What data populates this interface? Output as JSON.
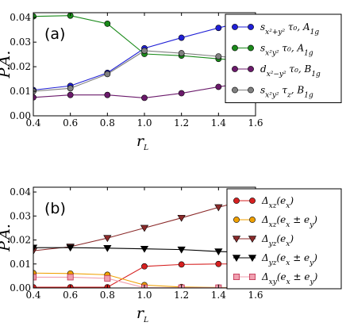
{
  "chart_data": [
    {
      "type": "line",
      "panel_label": "(a)",
      "xlabel": "r_L",
      "ylabel": "P.A.",
      "xlim": [
        0.4,
        1.6
      ],
      "ylim": [
        0.0,
        0.042
      ],
      "xticks": [
        "0.4",
        "0.6",
        "0.8",
        "1.0",
        "1.2",
        "1.4",
        "1.6"
      ],
      "yticks": [
        "0.00",
        "0.01",
        "0.02",
        "0.03",
        "0.04"
      ],
      "legend_position": "top-right",
      "x": [
        0.4,
        0.6,
        0.8,
        1.0,
        1.2,
        1.4,
        1.6
      ],
      "series": [
        {
          "name": "s_{x²+y²} τ₀, A_{1g}",
          "color": "#1f1fd6",
          "marker": "circle",
          "values": [
            0.0105,
            0.0122,
            0.0175,
            0.0275,
            0.0318,
            0.0358,
            0.0395
          ]
        },
        {
          "name": "s_{x²y²} τ₀, A_{1g}",
          "color": "#1a8a1a",
          "marker": "circle",
          "values": [
            0.0405,
            0.0408,
            0.0375,
            0.0252,
            0.0245,
            0.0232,
            0.0222
          ]
        },
        {
          "name": "d_{x²−y²} τ₀, B_{1g}",
          "color": "#6b1a6b",
          "marker": "circle",
          "values": [
            0.0075,
            0.0085,
            0.0085,
            0.0073,
            0.0092,
            0.0118,
            0.014
          ]
        },
        {
          "name": "s_{x²y²} τ_z, B_{1g}",
          "color": "#808080",
          "marker": "circle",
          "values": [
            0.01,
            0.0112,
            0.017,
            0.0265,
            0.0255,
            0.0242,
            0.023
          ]
        }
      ]
    },
    {
      "type": "line",
      "panel_label": "(b)",
      "xlabel": "r_L",
      "ylabel": "P.A.",
      "xlim": [
        0.4,
        1.6
      ],
      "ylim": [
        0.0,
        0.042
      ],
      "xticks": [
        "0.4",
        "0.6",
        "0.8",
        "1.0",
        "1.2",
        "1.4",
        "1.6"
      ],
      "yticks": [
        "0.00",
        "0.01",
        "0.02",
        "0.03",
        "0.04"
      ],
      "legend_position": "top-right",
      "x": [
        0.4,
        0.6,
        0.8,
        1.0,
        1.2,
        1.4,
        1.6
      ],
      "series": [
        {
          "name": "Δ_{xz}(e_x)",
          "color": "#d62020",
          "marker": "circle",
          "values": [
            0.0003,
            0.0003,
            0.0003,
            0.009,
            0.0098,
            0.01,
            0.01
          ]
        },
        {
          "name": "Δ_{xz}(e_x ± e_y)",
          "color": "#f0a000",
          "marker": "circle",
          "values": [
            0.0062,
            0.006,
            0.0055,
            0.0012,
            0.0004,
            0.0002,
            0.0001
          ]
        },
        {
          "name": "Δ_{yz}(e_x)",
          "color": "#8b2a2a",
          "marker": "triangle-down",
          "values": [
            0.0155,
            0.0172,
            0.0208,
            0.025,
            0.0292,
            0.0336,
            0.0378
          ]
        },
        {
          "name": "Δ_{yz}(e_x ± e_y)",
          "color": "#000000",
          "marker": "triangle-down",
          "values": [
            0.0168,
            0.0168,
            0.0166,
            0.0163,
            0.016,
            0.0152,
            0.0147
          ]
        },
        {
          "name": "Δ_{xy}(e_x ± e_y)",
          "color": "#f0a0b0",
          "marker": "square",
          "values": [
            0.0045,
            0.0045,
            0.004,
            0.0001,
            0.0001,
            0.0001,
            0.0001
          ]
        }
      ]
    }
  ]
}
